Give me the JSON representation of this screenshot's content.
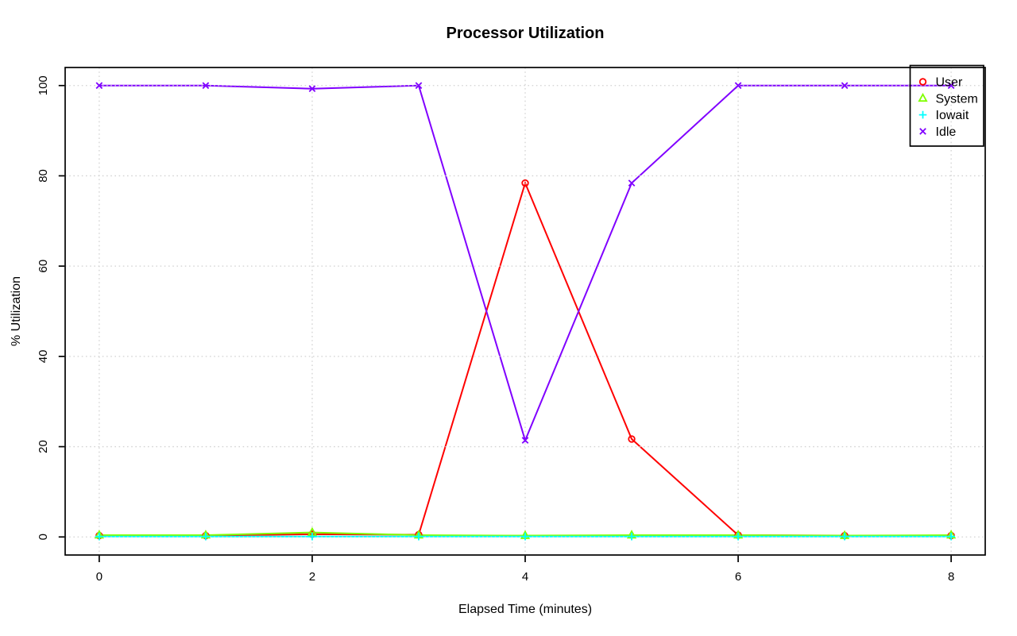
{
  "chart_data": {
    "type": "line",
    "title": "Processor Utilization",
    "xlabel": "Elapsed Time (minutes)",
    "ylabel": "% Utilization",
    "x": [
      0,
      1,
      2,
      3,
      4,
      5,
      6,
      7,
      8
    ],
    "xlim": [
      0,
      8
    ],
    "ylim": [
      0,
      100
    ],
    "x_ticks": [
      0,
      2,
      4,
      6,
      8
    ],
    "y_ticks": [
      0,
      20,
      40,
      60,
      80,
      100
    ],
    "grid": "dotted",
    "grid_color": "#d2d2d2",
    "axis_color": "#000000",
    "background_color": "#ffffff",
    "legend_position": "top-right",
    "series": [
      {
        "name": "User",
        "color": "#FF0000",
        "marker": "circle",
        "values": [
          0.3,
          0.3,
          0.6,
          0.5,
          78.4,
          21.7,
          0.4,
          0.3,
          0.3
        ]
      },
      {
        "name": "System",
        "color": "#80FF00",
        "marker": "triangle",
        "values": [
          0.4,
          0.4,
          1.0,
          0.4,
          0.3,
          0.4,
          0.4,
          0.3,
          0.4
        ]
      },
      {
        "name": "Iowait",
        "color": "#00FFFF",
        "marker": "plus",
        "values": [
          0.1,
          0.1,
          0.1,
          0.1,
          0.1,
          0.1,
          0.1,
          0.1,
          0.1
        ]
      },
      {
        "name": "Idle",
        "color": "#8000FF",
        "marker": "x",
        "values": [
          100,
          100,
          99.3,
          100,
          21.4,
          78.4,
          100,
          100,
          100
        ]
      }
    ]
  }
}
